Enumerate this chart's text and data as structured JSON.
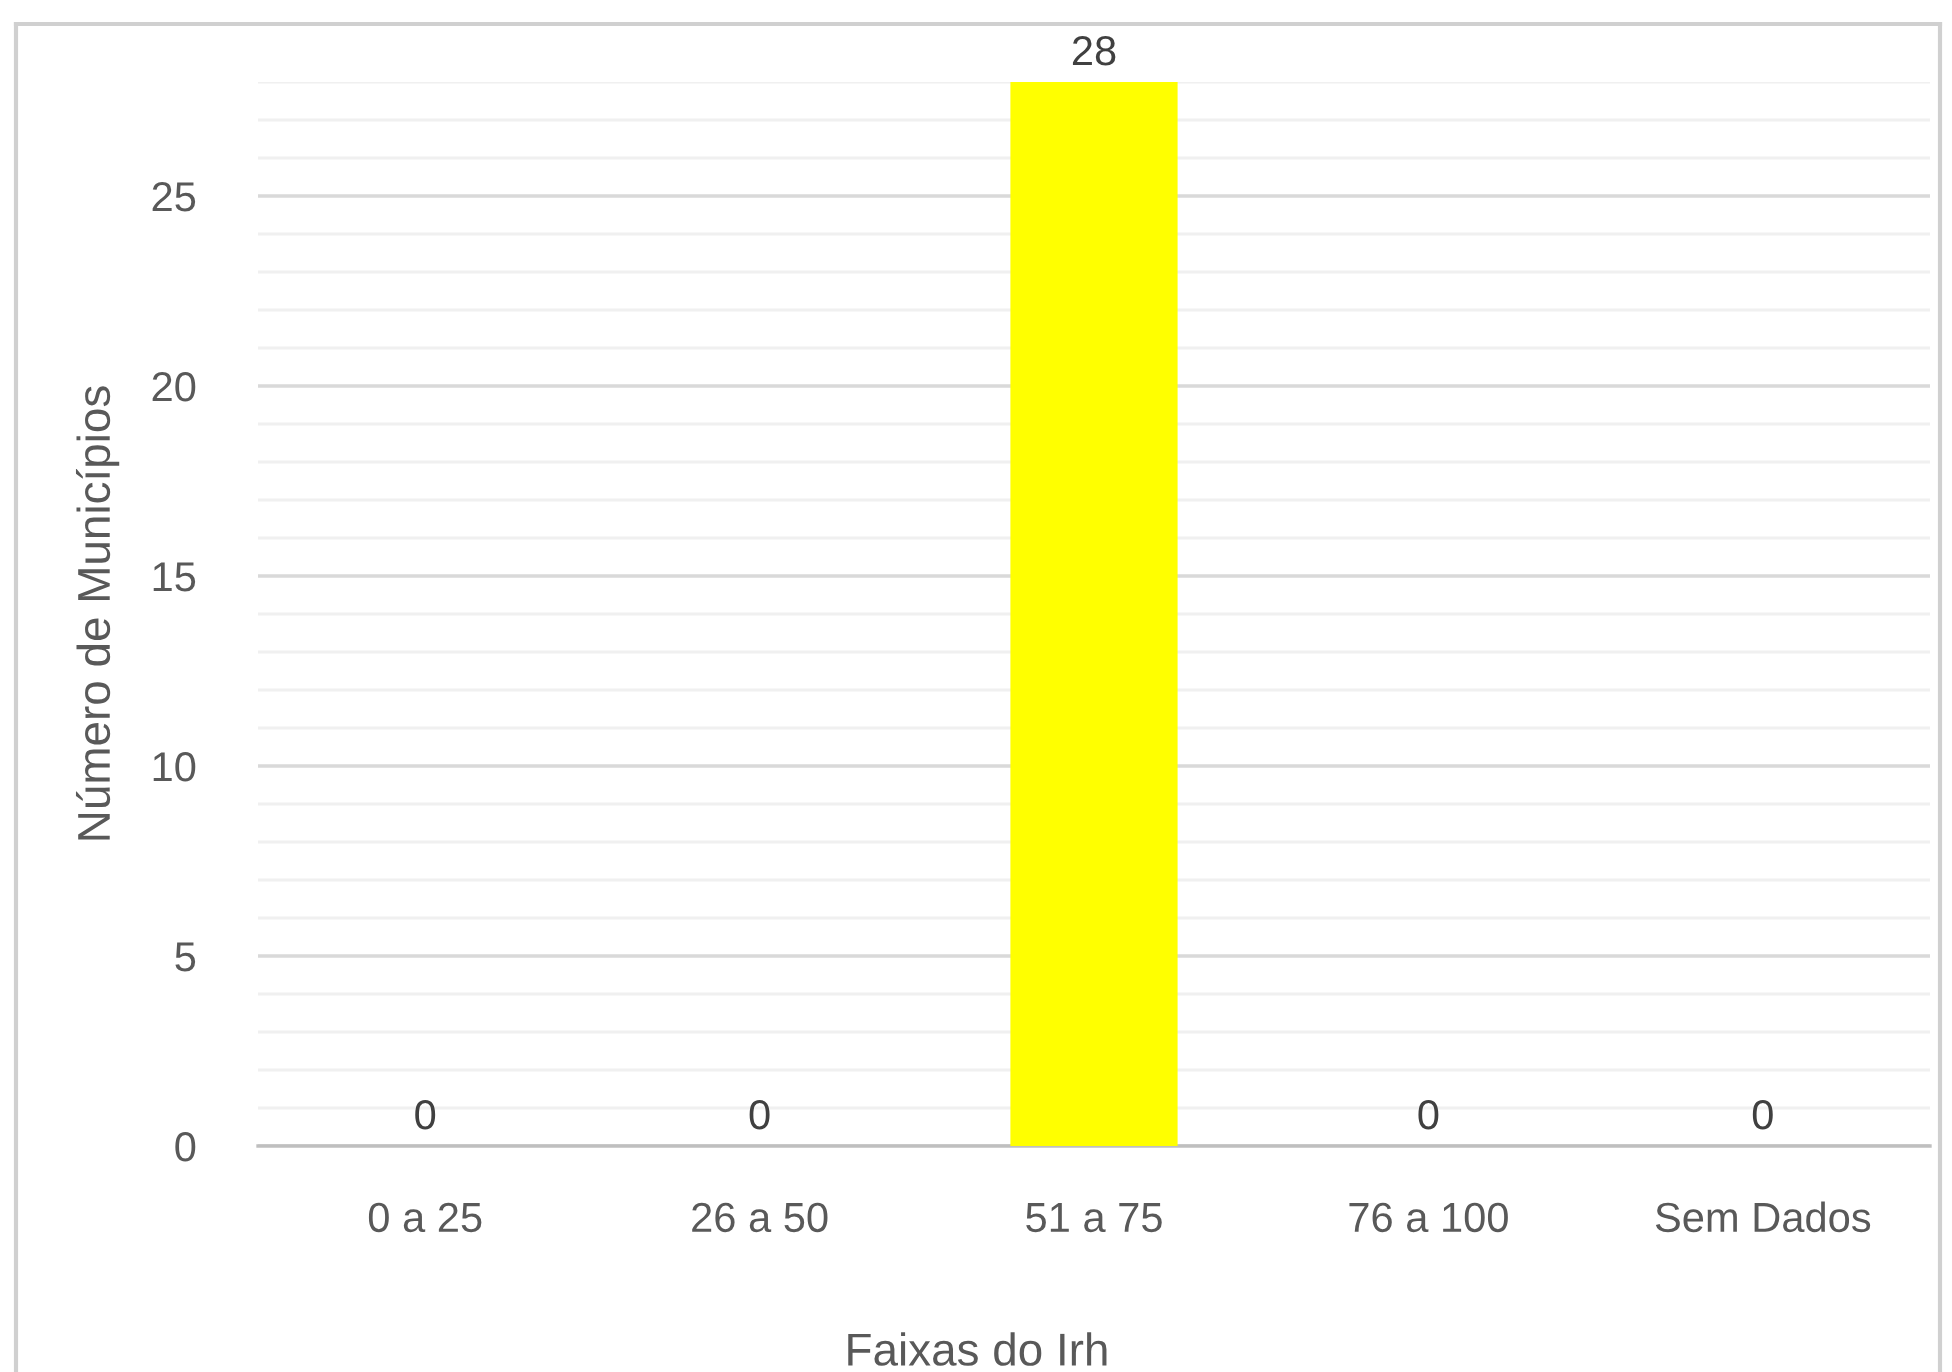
{
  "chart_data": {
    "type": "bar",
    "categories": [
      "0 a 25",
      "26 a 50",
      "51 a 75",
      "76 a 100",
      "Sem Dados"
    ],
    "values": [
      0,
      0,
      28,
      0,
      0
    ],
    "color": "#ffff00",
    "xlabel": "Faixas do Irh",
    "ylabel": "Número de Municípios",
    "ylim": [
      0,
      28
    ],
    "yticks": [
      0,
      5,
      10,
      15,
      20,
      25
    ],
    "grid": "y",
    "data_labels": true
  }
}
